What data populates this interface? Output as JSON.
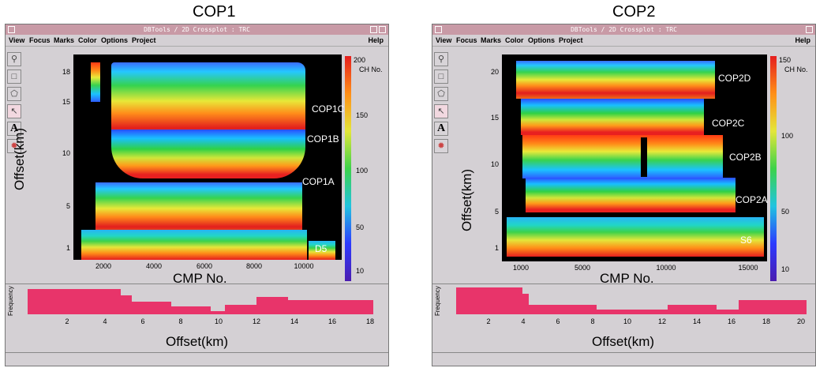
{
  "panels": [
    {
      "caption": "COP1",
      "title_bar": "DBTools  /  2D Crossplot : TRC",
      "menu": [
        "View",
        "Focus",
        "Marks",
        "Color",
        "Options",
        "Project"
      ],
      "help": "Help",
      "y_axis_label": "Offset(km)",
      "x_axis_label": "CMP No.",
      "freq_axis_label": "Frequency",
      "freq_x_label": "Offset(km)",
      "y_ticks": [
        "18",
        "15",
        "10",
        "5",
        "1"
      ],
      "x_ticks": [
        "2000",
        "4000",
        "6000",
        "8000",
        "10000"
      ],
      "colorbar_title": "CH No.",
      "colorbar_ticks": [
        "200",
        "150",
        "100",
        "50",
        "10"
      ],
      "freq_ticks": [
        "2",
        "4",
        "6",
        "8",
        "10",
        "12",
        "14",
        "16",
        "18"
      ],
      "layers": [
        "COP1C",
        "COP1B",
        "COP1A",
        "D5"
      ]
    },
    {
      "caption": "COP2",
      "title_bar": "DBTools  /  2D Crossplot : TRC",
      "menu": [
        "View",
        "Focus",
        "Marks",
        "Color",
        "Options",
        "Project"
      ],
      "help": "Help",
      "y_axis_label": "Offset(km)",
      "x_axis_label": "CMP No.",
      "freq_axis_label": "Frequency",
      "freq_x_label": "Offset(km)",
      "y_ticks": [
        "20",
        "15",
        "10",
        "5",
        "1"
      ],
      "x_ticks": [
        "1000",
        "5000",
        "10000",
        "15000"
      ],
      "colorbar_title": "CH No.",
      "colorbar_ticks": [
        "150",
        "100",
        "50",
        "10"
      ],
      "freq_ticks": [
        "2",
        "4",
        "6",
        "8",
        "10",
        "12",
        "14",
        "16",
        "18",
        "20"
      ],
      "layers": [
        "COP2D",
        "COP2C",
        "COP2B",
        "COP2A",
        "S6"
      ]
    }
  ],
  "tools": [
    "zoom-icon",
    "pan-icon",
    "lasso-icon",
    "select-icon",
    "text-icon",
    "settings-icon"
  ],
  "colors": {
    "window_bg": "#d4d0d4",
    "title_bar": "#c89aa6",
    "histogram": "#e8346a",
    "plot_bg": "#000000"
  }
}
